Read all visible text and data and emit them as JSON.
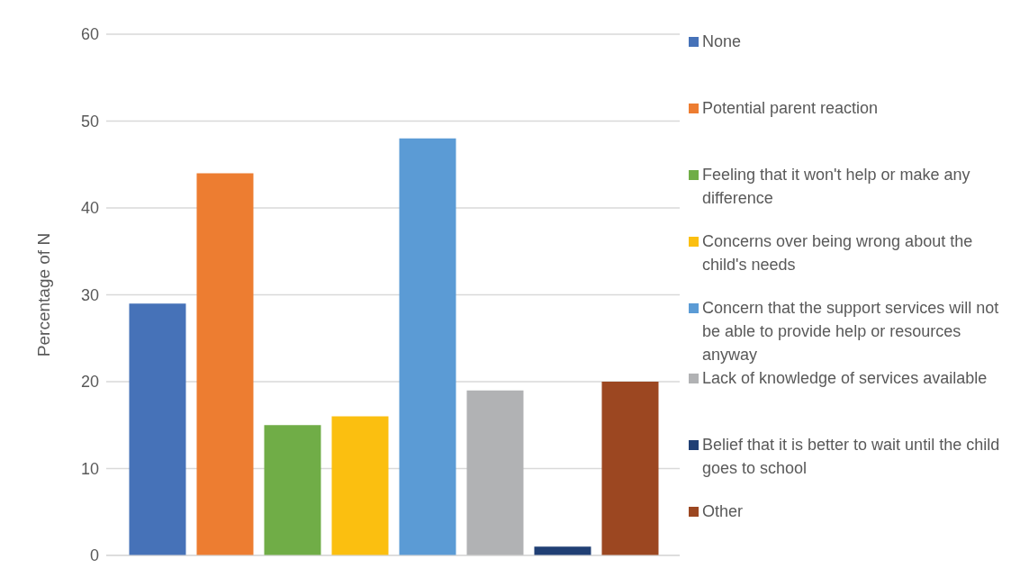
{
  "chart_data": {
    "type": "bar",
    "ylabel": "Percentage of N",
    "categories": [
      null
    ],
    "series": [
      {
        "name": "None",
        "color": "#4672b8",
        "values": [
          29
        ]
      },
      {
        "name": "Potential parent reaction",
        "color": "#ed7d31",
        "values": [
          44
        ]
      },
      {
        "name": "Feeling that it won't help or make any difference",
        "color": "#70ad47",
        "values": [
          15
        ]
      },
      {
        "name": "Concerns over being wrong about the child's needs",
        "color": "#fbbf10",
        "values": [
          16
        ]
      },
      {
        "name": "Concern that the support services will not be able to provide help or resources anyway",
        "color": "#5b9bd5",
        "values": [
          48
        ]
      },
      {
        "name": "Lack of knowledge of services available",
        "color": "#b1b2b4",
        "values": [
          19
        ]
      },
      {
        "name": "Belief that it is better to wait until the child goes to school",
        "color": "#203f74",
        "values": [
          1
        ]
      },
      {
        "name": "Other",
        "color": "#9c4721",
        "values": [
          20
        ]
      }
    ],
    "ylim": [
      0,
      60
    ],
    "yticks": [
      0,
      10,
      20,
      30,
      40,
      50,
      60
    ],
    "grid": "y",
    "legend": "right"
  }
}
